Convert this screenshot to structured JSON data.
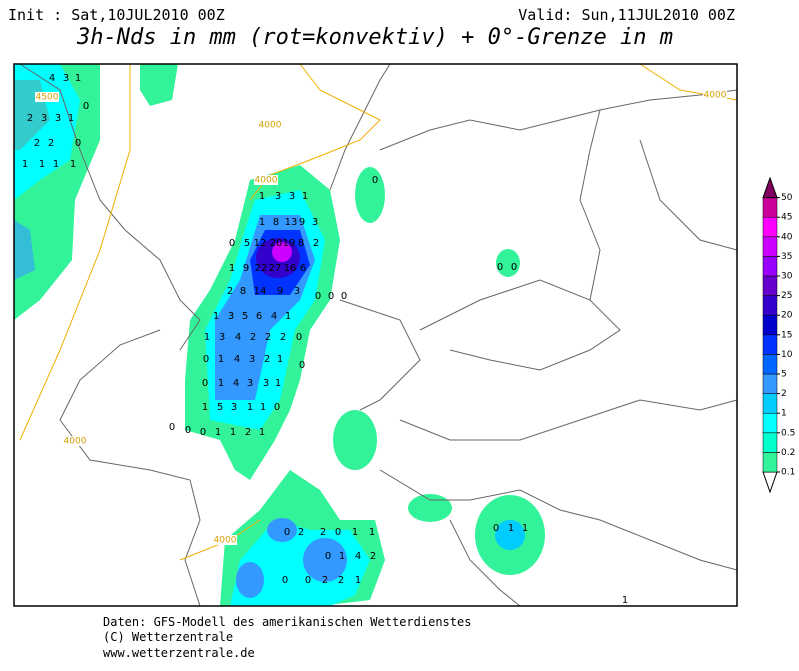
{
  "header": {
    "init": "Init : Sat,10JUL2010 00Z",
    "valid": "Valid: Sun,11JUL2010 00Z",
    "title": "3h-Nds in mm (rot=konvektiv) + 0°-Grenze in m"
  },
  "footer": [
    "Daten: GFS-Modell des amerikanischen Wetterdienstes",
    "(C) Wetterzentrale",
    "www.wetterzentrale.de"
  ],
  "contour_labels": [
    4000,
    4000,
    4000,
    4000,
    4000,
    4500
  ],
  "grid_values": [
    1,
    3,
    3,
    1,
    1,
    8,
    13,
    9,
    3,
    0,
    5,
    12,
    20,
    19,
    8,
    2,
    1,
    9,
    22,
    27,
    16,
    6,
    2,
    8,
    14,
    9,
    3,
    0,
    0,
    0,
    1,
    3,
    5,
    6,
    4,
    1,
    1,
    3,
    4,
    2,
    2,
    2,
    0,
    0,
    1,
    4,
    3,
    2,
    1,
    0,
    0,
    1,
    4,
    3,
    3,
    1,
    1,
    5,
    3,
    1,
    1,
    0,
    0,
    0,
    0,
    1,
    1,
    2,
    1,
    4,
    3,
    1,
    2,
    3,
    3,
    1,
    0,
    2,
    2,
    0,
    1,
    1,
    1,
    1,
    0,
    0,
    0,
    0,
    2,
    2,
    0,
    1,
    1,
    0,
    1,
    4,
    2,
    0,
    0,
    2,
    2,
    1,
    0,
    1,
    1,
    1
  ],
  "legend": {
    "levels": [
      0.1,
      0.2,
      0.5,
      1,
      2,
      5,
      10,
      15,
      20,
      25,
      30,
      35,
      40,
      45,
      50
    ],
    "colors": [
      "#33f39a",
      "#00ffcc",
      "#00ffff",
      "#00ccff",
      "#3399ff",
      "#0066ff",
      "#0033ff",
      "#0000cc",
      "#3300cc",
      "#6600cc",
      "#9900ff",
      "#cc00ff",
      "#ff00ff",
      "#cc0099",
      "#800060"
    ]
  }
}
